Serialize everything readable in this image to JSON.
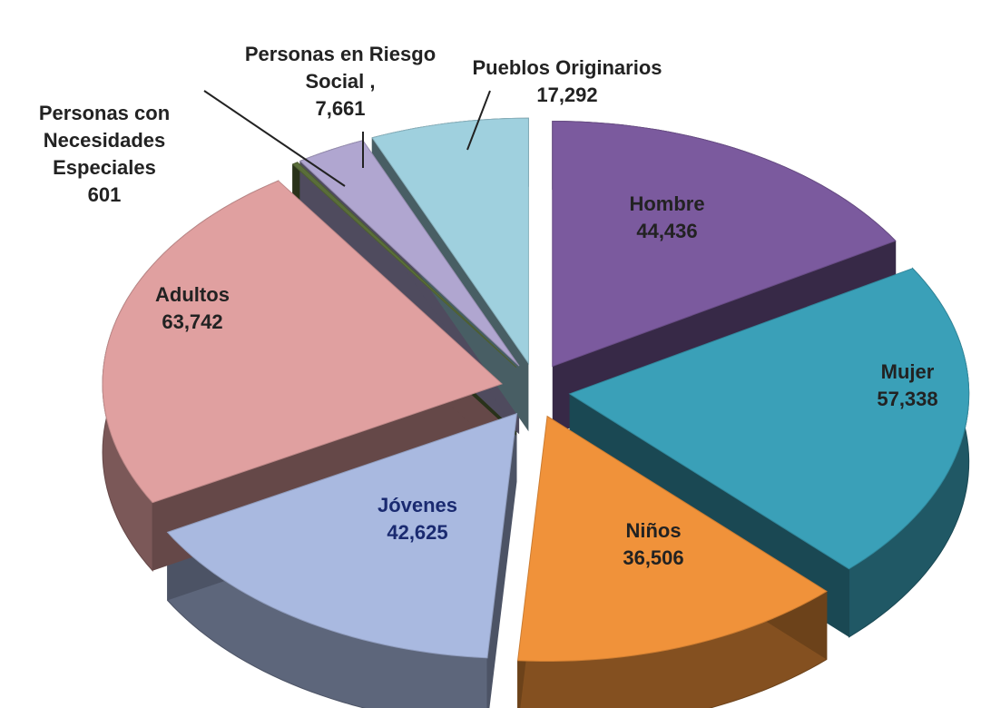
{
  "chart_data": {
    "type": "pie",
    "categories": [
      "Hombre",
      "Mujer",
      "Niños",
      "Jóvenes",
      "Adultos",
      "Personas con Necesidades Especiales",
      "Personas en Riesgo Social ,",
      "Pueblos Originarios"
    ],
    "values": [
      44436,
      57338,
      36506,
      42625,
      63742,
      601,
      7661,
      17292
    ],
    "value_labels": [
      "44,436",
      "57,338",
      "36,506",
      "42,625",
      "63,742",
      "601",
      "7,661",
      "17,292"
    ],
    "colors": [
      "#7b5a9e",
      "#3aa0b8",
      "#f0923a",
      "#a9b9e0",
      "#e0a0a0",
      "#5a6e3a",
      "#b0a6d0",
      "#9fd0de"
    ]
  }
}
